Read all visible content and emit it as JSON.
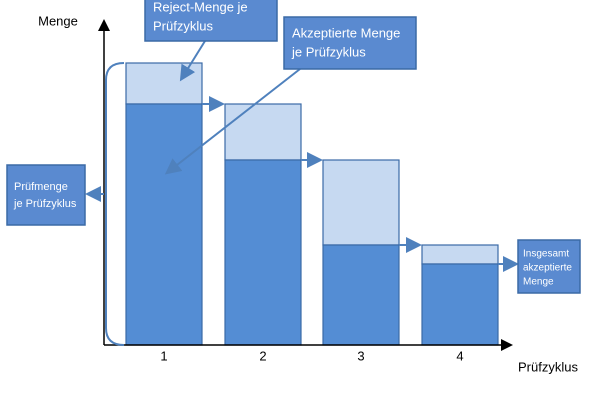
{
  "axis": {
    "y_label": "Menge",
    "x_label": "Prüfzyklus",
    "categories": [
      "1",
      "2",
      "3",
      "4"
    ]
  },
  "callouts": {
    "reject": [
      "Reject-Menge je",
      "Prüfzyklus"
    ],
    "accepted": [
      "Akzeptierte Menge",
      "je Prüfzyklus"
    ],
    "inspected": [
      "Prüfmenge",
      "je Prüfzyklus"
    ],
    "total": [
      "Insgesamt",
      "akzeptierte",
      "Menge"
    ]
  }
}
